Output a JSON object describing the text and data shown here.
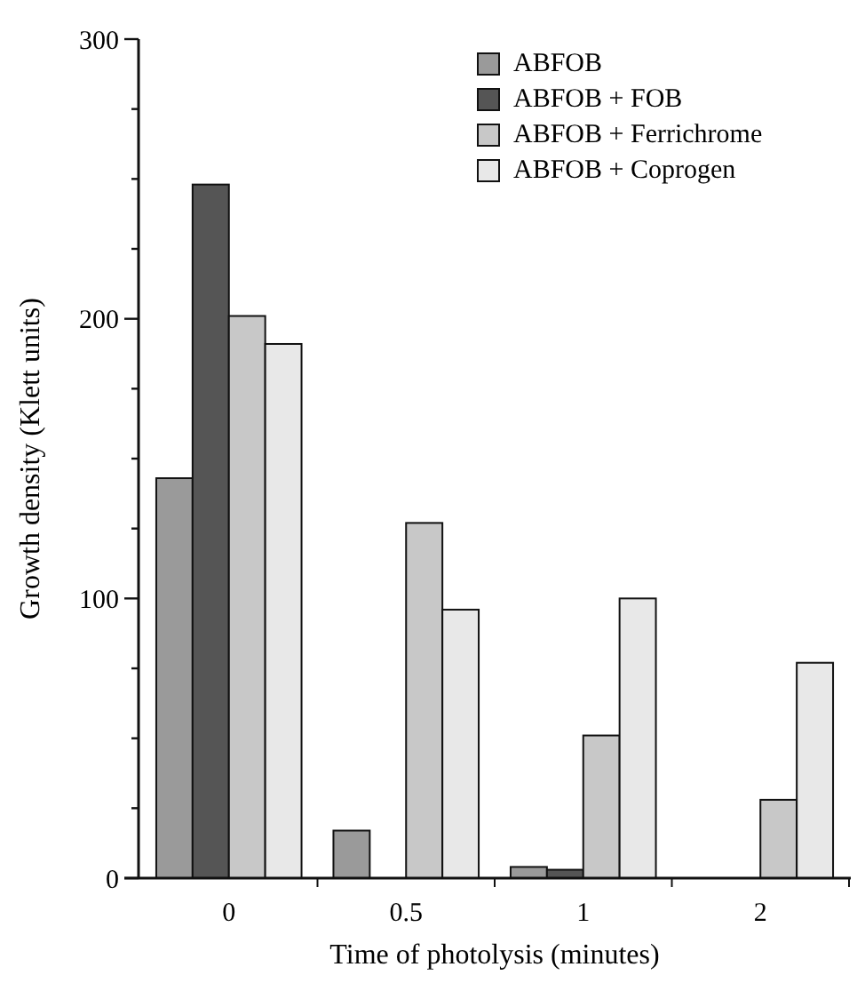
{
  "chart_data": {
    "type": "bar",
    "xlabel": "Time of photolysis (minutes)",
    "ylabel": "Growth density (Klett units)",
    "categories": [
      "0",
      "0.5",
      "1",
      "2"
    ],
    "series": [
      {
        "name": "ABFOB",
        "color": "#9a9a9a",
        "values": [
          143,
          17,
          4,
          null
        ]
      },
      {
        "name": "ABFOB + FOB",
        "color": "#555555",
        "values": [
          248,
          null,
          3,
          null
        ]
      },
      {
        "name": "ABFOB + Ferrichrome",
        "color": "#c8c8c8",
        "values": [
          201,
          127,
          51,
          28
        ]
      },
      {
        "name": "ABFOB + Coprogen",
        "color": "#e8e8e8",
        "values": [
          191,
          96,
          100,
          77
        ]
      }
    ],
    "ylim": [
      0,
      300
    ],
    "yticks": [
      0,
      {
        "value": 25,
        "label": null
      },
      {
        "value": 50,
        "label": null
      },
      {
        "value": 75,
        "label": null
      },
      100,
      {
        "value": 125,
        "label": null
      },
      {
        "value": 150,
        "label": null
      },
      {
        "value": 175,
        "label": null
      },
      200,
      {
        "value": 225,
        "label": null
      },
      {
        "value": 250,
        "label": null
      },
      {
        "value": 275,
        "label": null
      },
      300
    ],
    "grid": false,
    "legend": "top right"
  }
}
